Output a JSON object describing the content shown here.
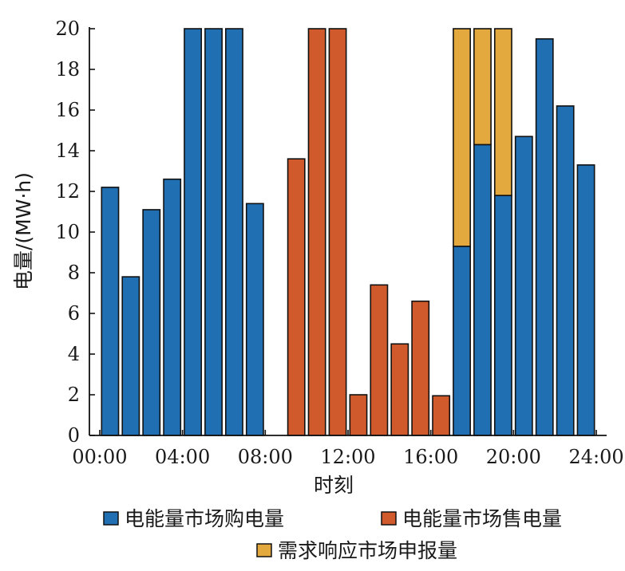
{
  "chart_data": {
    "type": "bar",
    "stacked": true,
    "title": "",
    "xlabel": "时刻",
    "ylabel": "电量/(MW·h)",
    "ylim": [
      0,
      20
    ],
    "xlim": [
      0,
      25
    ],
    "yticks": [
      0,
      2,
      4,
      6,
      8,
      10,
      12,
      14,
      16,
      18,
      20
    ],
    "xticks": [
      {
        "value": 0.5,
        "label": "00:00"
      },
      {
        "value": 4.5,
        "label": "04:00"
      },
      {
        "value": 8.5,
        "label": "08:00"
      },
      {
        "value": 12.5,
        "label": "12:00"
      },
      {
        "value": 16.5,
        "label": "16:00"
      },
      {
        "value": 20.5,
        "label": "20:00"
      },
      {
        "value": 24.5,
        "label": "24:00"
      }
    ],
    "categories": [
      1,
      2,
      3,
      4,
      5,
      6,
      7,
      8,
      9,
      10,
      11,
      12,
      13,
      14,
      15,
      16,
      17,
      18,
      19,
      20,
      21,
      22,
      23,
      24
    ],
    "series": [
      {
        "name": "电能量市场购电量",
        "color": "#1f6fb2",
        "values": [
          12.2,
          7.8,
          11.1,
          12.6,
          20,
          20,
          20,
          11.4,
          0,
          0,
          0,
          0,
          0,
          0,
          0,
          0,
          0,
          9.3,
          14.3,
          11.8,
          14.7,
          19.5,
          16.2,
          13.3
        ]
      },
      {
        "name": "电能量市场售电量",
        "color": "#d05a2c",
        "values": [
          0,
          0,
          0,
          0,
          0,
          0,
          0,
          0,
          0,
          13.6,
          20,
          20,
          2.0,
          7.4,
          4.5,
          6.6,
          1.95,
          0,
          0,
          0,
          0,
          0,
          0,
          0
        ]
      },
      {
        "name": "需求响应市场申报量",
        "color": "#e3a93f",
        "values": [
          0,
          0,
          0,
          0,
          0,
          0,
          0,
          0,
          0,
          0,
          0,
          0,
          0,
          0,
          0,
          0,
          0,
          10.7,
          5.7,
          8.2,
          0,
          0,
          0,
          0
        ]
      }
    ],
    "legend": {
      "position": "bottom"
    }
  }
}
